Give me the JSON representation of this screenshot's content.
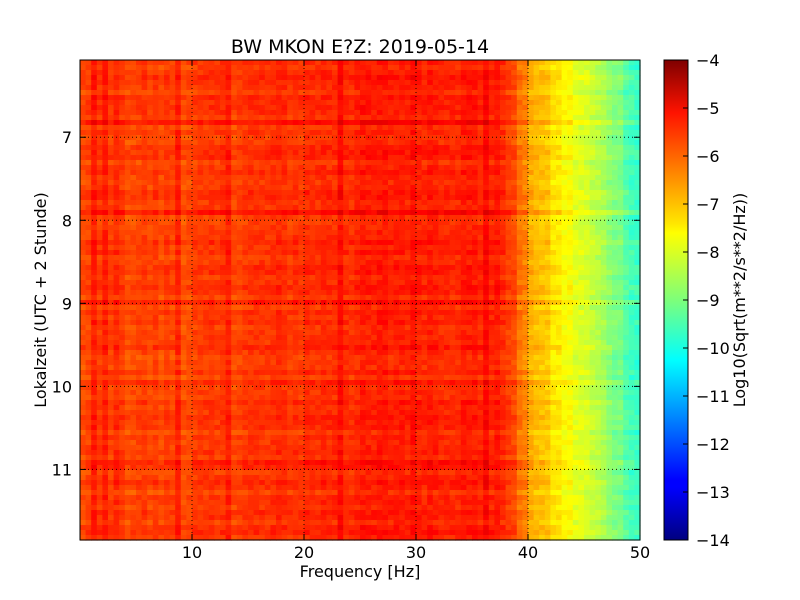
{
  "chart_data": {
    "type": "heatmap",
    "title": "BW MKON E?Z: 2019-05-14",
    "xlabel": "Frequency [Hz]",
    "ylabel": "Lokalzeit (UTC + 2 Stunde)",
    "xlim": [
      0,
      50
    ],
    "ylim": [
      6.07,
      11.85
    ],
    "y_inverted": true,
    "x_ticks": [
      10,
      20,
      30,
      40,
      50
    ],
    "y_ticks": [
      7,
      8,
      9,
      10,
      11
    ],
    "grid": "dotted",
    "colormap": "jet",
    "colorbar": {
      "label": "Log10(Sqrt(m**2/s**2/Hz))",
      "range": [
        -14,
        -4
      ],
      "ticks": [
        -4,
        -5,
        -6,
        -7,
        -8,
        -9,
        -10,
        -11,
        -12,
        -13,
        -14
      ]
    },
    "approx_profile": {
      "freq_hz": [
        0,
        10,
        20,
        30,
        38,
        40,
        42,
        44,
        46,
        48,
        50
      ],
      "log_level": [
        -5.9,
        -5.9,
        -5.7,
        -5.5,
        -5.6,
        -6.8,
        -7.4,
        -7.9,
        -8.4,
        -9.0,
        -9.8
      ]
    }
  },
  "colors": {
    "background": "#ffffff",
    "axes_edge": "#000000",
    "grid": "#000000"
  }
}
